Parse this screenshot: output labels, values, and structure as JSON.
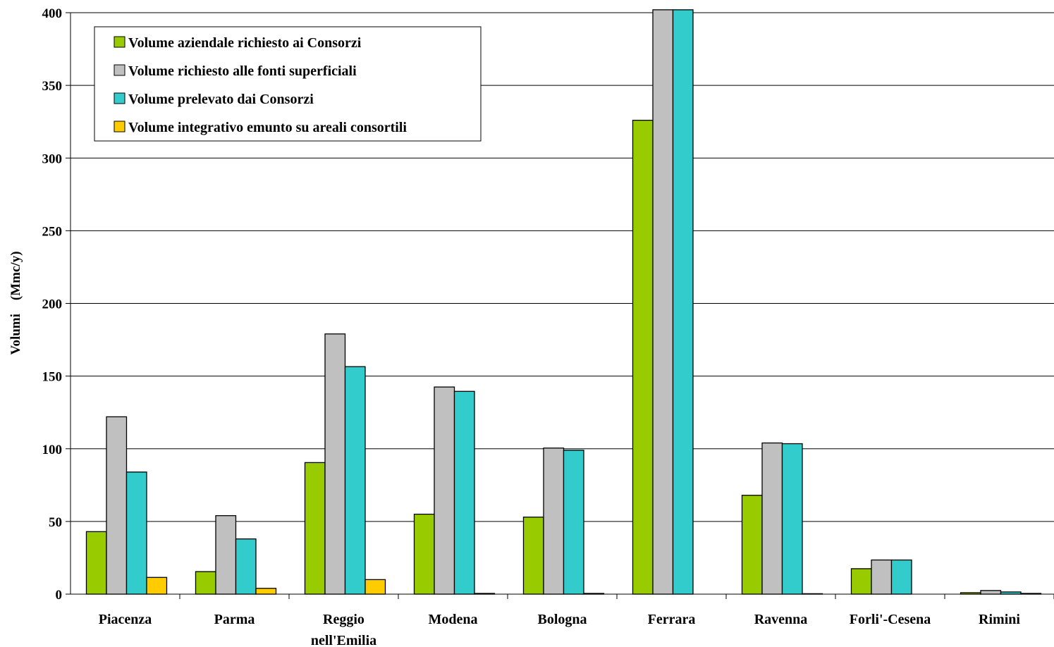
{
  "chart_data": {
    "type": "bar",
    "ylabel": "Volumi    (Mmc/y)",
    "ylim": [
      0,
      400
    ],
    "yticks": [
      0,
      50,
      100,
      150,
      200,
      250,
      300,
      350,
      400
    ],
    "grid": true,
    "legend_position": "top-left",
    "categories": [
      [
        "Piacenza"
      ],
      [
        "Parma"
      ],
      [
        "Reggio",
        "nell'Emilia"
      ],
      [
        "Modena"
      ],
      [
        "Bologna"
      ],
      [
        "Ferrara"
      ],
      [
        "Ravenna"
      ],
      [
        "Forli'-Cesena"
      ],
      [
        "Rimini"
      ]
    ],
    "series": [
      {
        "name": "Volume aziendale richiesto ai Consorzi",
        "color": "#99cc00",
        "values": [
          43,
          15.5,
          90.5,
          55,
          53,
          326,
          68,
          17.5,
          1
        ]
      },
      {
        "name": "Volume richiesto alle fonti superficiali",
        "color": "#c0c0c0",
        "values": [
          122,
          54,
          179,
          142.5,
          100.5,
          402,
          104,
          23.5,
          2.5
        ]
      },
      {
        "name": "Volume prelevato dai Consorzi",
        "color": "#33cccc",
        "values": [
          84,
          38,
          156.5,
          139.5,
          99,
          402,
          103.5,
          23.5,
          1.5
        ]
      },
      {
        "name": "Volume integrativo emunto su areali consortili",
        "color": "#ffcc00",
        "values": [
          11.5,
          4,
          10,
          0.5,
          0.5,
          0,
          0.3,
          0,
          0.5
        ]
      }
    ]
  }
}
